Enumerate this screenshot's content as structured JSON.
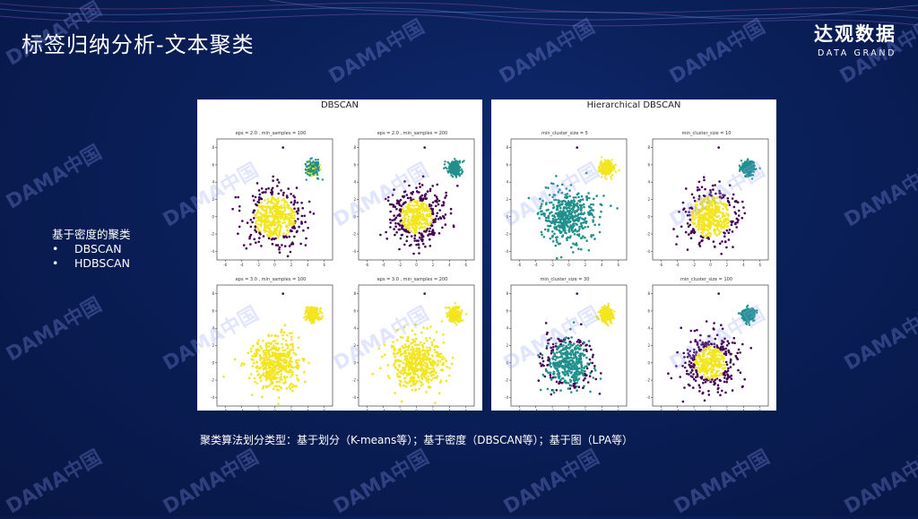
{
  "header": {
    "title": "标签归纳分析-文本聚类",
    "logo_cn": "达观数据",
    "logo_en": "DATA GRAND"
  },
  "sidebar": {
    "heading": "基于密度的聚类",
    "items": [
      "DBSCAN",
      "HDBSCAN"
    ]
  },
  "panels": [
    {
      "title": "DBSCAN",
      "plots": [
        {
          "title": "eps = 2.0 , min_samples = 100",
          "scheme": "db1"
        },
        {
          "title": "eps = 2.0 , min_samples = 200",
          "scheme": "db2"
        },
        {
          "title": "eps = 3.0 , min_samples = 100",
          "scheme": "db3"
        },
        {
          "title": "eps = 3.0 , min_samples = 200",
          "scheme": "db3"
        }
      ]
    },
    {
      "title": "Hierarchical DBSCAN",
      "plots": [
        {
          "title": "min_cluster_size = 5",
          "scheme": "h5"
        },
        {
          "title": "min_cluster_size = 10",
          "scheme": "h10"
        },
        {
          "title": "min_cluster_size = 30",
          "scheme": "h30"
        },
        {
          "title": "min_cluster_size = 100",
          "scheme": "h100"
        }
      ]
    }
  ],
  "axis": {
    "xticks": [
      "-6",
      "-4",
      "-2",
      "0",
      "2",
      "4",
      "6"
    ],
    "yticks": [
      "8",
      "6",
      "4",
      "2",
      "0",
      "-2",
      "-4"
    ]
  },
  "colors": {
    "yellow": "#f3e51e",
    "teal": "#21908d",
    "purple": "#440154"
  },
  "caption": "聚类算法划分类型：基于划分（K-means等）；基于密度（DBSCAN等）；基于图（LPA等）",
  "watermark": "DAMA中国"
}
